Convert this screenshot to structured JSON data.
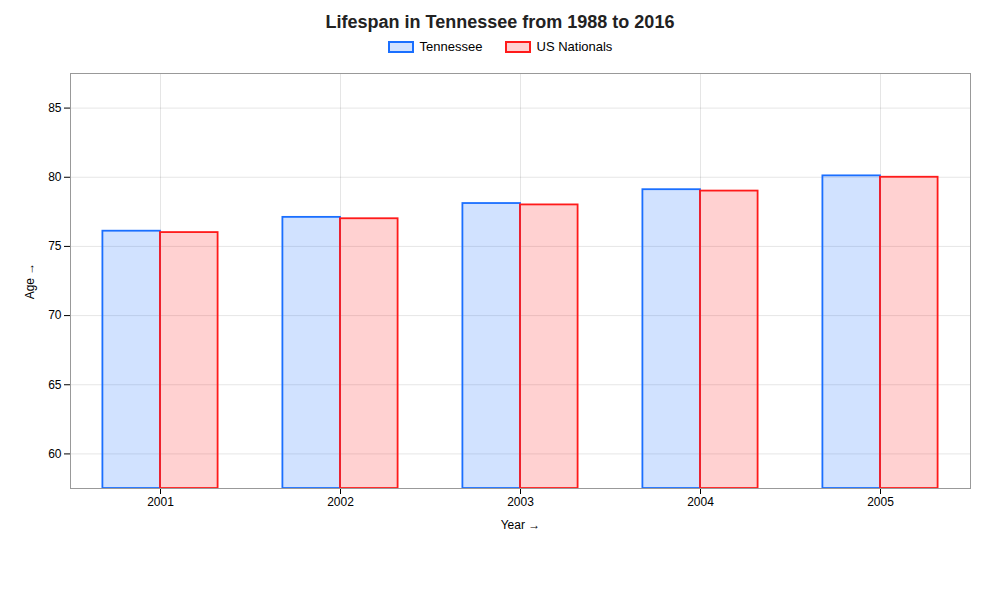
{
  "chart_data": {
    "type": "bar",
    "title": "Lifespan in Tennessee from 1988 to 2016",
    "xlabel": "Year",
    "ylabel": "Age",
    "categories": [
      "2001",
      "2002",
      "2003",
      "2004",
      "2005"
    ],
    "series": [
      {
        "name": "Tennessee",
        "color": "#1a6fff",
        "values": [
          76.1,
          77.1,
          78.1,
          79.1,
          80.1
        ]
      },
      {
        "name": "US Nationals",
        "color": "#ff1a1a",
        "values": [
          76.0,
          77.0,
          78.0,
          79.0,
          80.0
        ]
      }
    ],
    "ylim": [
      57.5,
      87.5
    ],
    "yticks": [
      60,
      65,
      70,
      75,
      80,
      85
    ],
    "grid": true,
    "legend": "top"
  }
}
